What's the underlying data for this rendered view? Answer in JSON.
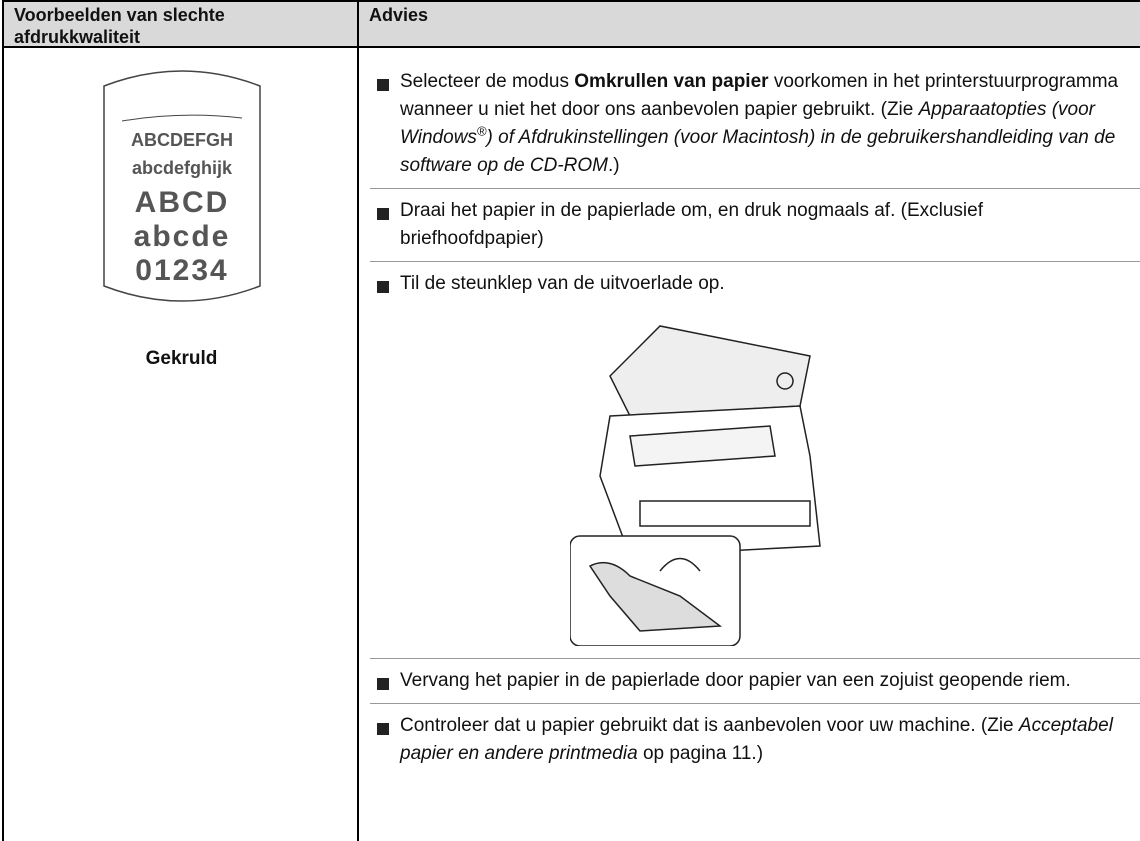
{
  "table": {
    "headers": [
      "Voorbeelden van slechte afdrukkwaliteit",
      "Advies"
    ],
    "example": {
      "sample_lines": [
        "ABCDEFGH",
        "abcdefghijk",
        "ABCD",
        "abcde",
        "01234"
      ],
      "caption": "Gekruld"
    },
    "advice": [
      [
        {
          "text": "Selecteer de modus ",
          "style": "normal"
        },
        {
          "text": "Omkrullen van papier",
          "style": "bold"
        },
        {
          "text": " voorkomen in het printerstuurprogramma wanneer u niet het door ons aanbevolen papier gebruikt. (Zie ",
          "style": "normal"
        },
        {
          "text": "Apparaatopties (voor Windows",
          "style": "italic"
        },
        {
          "text": "®",
          "style": "sup"
        },
        {
          "text": ") of Afdrukinstellingen (voor Macintosh) in de gebruikershandleiding van de software op de CD-ROM",
          "style": "italic"
        },
        {
          "text": ".)",
          "style": "normal"
        }
      ],
      [
        {
          "text": "Draai het papier in de papierlade om, en druk nogmaals af. (Exclusief briefhoofdpapier)",
          "style": "normal"
        }
      ],
      [
        {
          "text": "Til de steunklep van de uitvoerlade op.",
          "style": "normal"
        }
      ],
      [
        {
          "text": "Vervang het papier in de papierlade door papier van een zojuist geopende riem.",
          "style": "normal"
        }
      ],
      [
        {
          "text": "Controleer dat u papier gebruikt dat is aanbevolen voor uw machine. (Zie ",
          "style": "normal"
        },
        {
          "text": "Acceptabel papier en andere printmedia",
          "style": "italic"
        },
        {
          "text": " op pagina 11.)",
          "style": "normal"
        }
      ]
    ]
  }
}
